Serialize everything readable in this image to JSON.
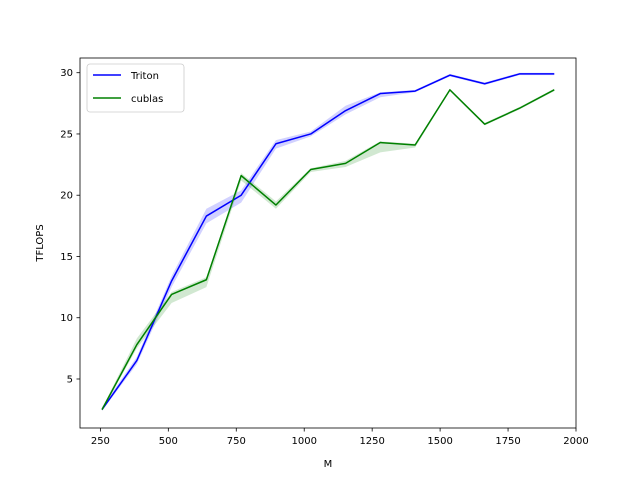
{
  "chart_data": {
    "type": "line",
    "title": "",
    "xlabel": "M",
    "ylabel": "TFLOPS",
    "xlim": [
      175,
      2000
    ],
    "ylim": [
      1.0,
      31.2
    ],
    "xticks": [
      250,
      500,
      750,
      1000,
      1250,
      1500,
      1750,
      2000
    ],
    "yticks": [
      5,
      10,
      15,
      20,
      25,
      30
    ],
    "grid": false,
    "legend_position": "top-left",
    "x": [
      256,
      384,
      512,
      640,
      768,
      896,
      1024,
      1152,
      1280,
      1408,
      1536,
      1664,
      1792,
      1920
    ],
    "series": [
      {
        "name": "Triton",
        "color": "#0000ff",
        "band_color": "#0000ff",
        "values": [
          2.5,
          6.5,
          13.0,
          18.3,
          20.0,
          24.2,
          25.0,
          26.9,
          28.3,
          28.5,
          29.8,
          29.1,
          29.9,
          29.9
        ],
        "lower": [
          2.4,
          6.2,
          12.5,
          17.7,
          19.4,
          23.8,
          24.8,
          26.6,
          28.0,
          28.4,
          29.7,
          29.0,
          29.8,
          29.8
        ],
        "upper": [
          2.7,
          6.8,
          13.4,
          18.9,
          20.4,
          24.5,
          25.2,
          27.3,
          28.4,
          28.6,
          29.9,
          29.2,
          30.0,
          30.0
        ]
      },
      {
        "name": "cublas",
        "color": "#008000",
        "band_color": "#008000",
        "values": [
          2.5,
          7.8,
          11.9,
          13.1,
          21.6,
          19.2,
          22.1,
          22.6,
          24.3,
          24.1,
          28.6,
          25.8,
          27.1,
          28.6
        ],
        "lower": [
          2.4,
          7.5,
          11.2,
          12.5,
          21.2,
          18.9,
          21.9,
          22.3,
          23.5,
          23.9,
          28.5,
          25.7,
          27.0,
          28.5
        ],
        "upper": [
          2.6,
          8.3,
          12.1,
          13.3,
          21.8,
          19.5,
          22.2,
          22.8,
          24.4,
          24.2,
          28.7,
          25.9,
          27.2,
          28.7
        ]
      }
    ]
  }
}
